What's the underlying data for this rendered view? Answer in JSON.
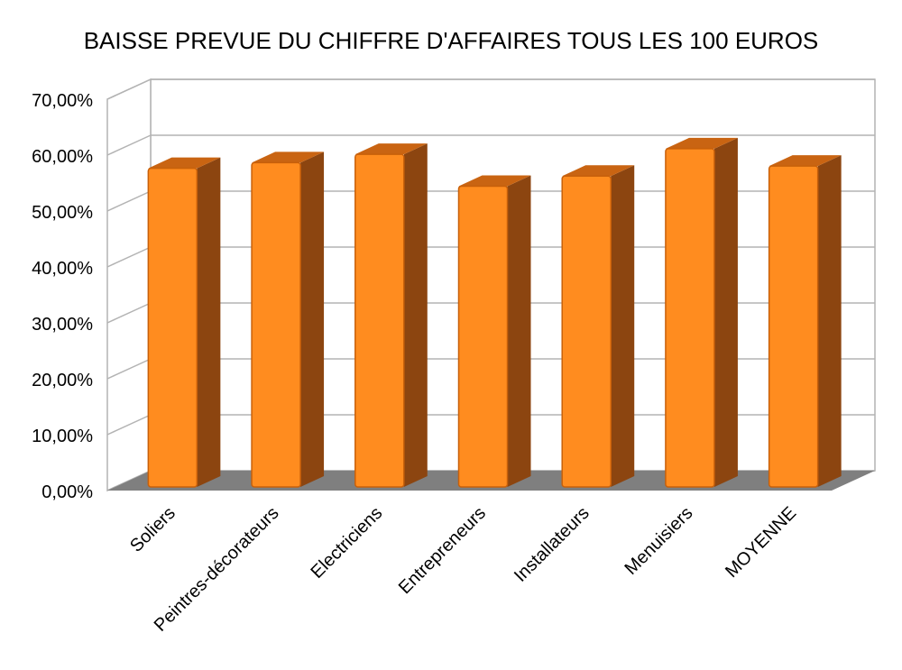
{
  "chart_data": {
    "type": "bar",
    "title": "BAISSE PREVUE DU CHIFFRE D'AFFAIRES TOUS LES 100 EUROS",
    "categories": [
      "Soliers",
      "Peintres-décorateurs",
      "Electriciens",
      "Entrepreneurs",
      "Installateurs",
      "Menuisiers",
      "MOYENNE"
    ],
    "values": [
      0.57,
      0.58,
      0.595,
      0.538,
      0.556,
      0.605,
      0.574
    ],
    "ylim": [
      0,
      0.7
    ],
    "yticks": [
      "0,00%",
      "10,00%",
      "20,00%",
      "30,00%",
      "40,00%",
      "50,00%",
      "60,00%",
      "70,00%"
    ],
    "grid": true,
    "style": "3d-column",
    "colors": {
      "bar_front": "#ff8c1f",
      "bar_side": "#8c4510",
      "bar_top": "#c96412",
      "floor": "#7f7f7f",
      "grid": "#b3b3b3"
    }
  }
}
